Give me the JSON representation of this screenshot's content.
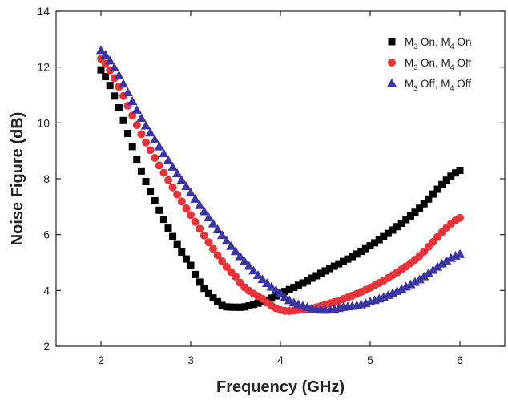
{
  "chart_data": {
    "type": "scatter",
    "title": "",
    "xlabel": "Frequency (GHz)",
    "ylabel": "Noise Figure (dB)",
    "xlim": [
      1.5,
      6.5
    ],
    "ylim": [
      2,
      14
    ],
    "xticks": [
      2,
      3,
      4,
      5,
      6
    ],
    "yticks": [
      2,
      4,
      6,
      8,
      10,
      12,
      14
    ],
    "grid": false,
    "legend_position": "top-right",
    "series": [
      {
        "name": "M3 On, M4 On",
        "legend_parts": [
          "M",
          "3",
          " On, M",
          "4",
          " On"
        ],
        "marker": "square",
        "color": "#000000",
        "x": [
          2.0,
          2.5,
          3.0,
          3.3,
          3.5,
          3.7,
          4.0,
          4.5,
          5.0,
          5.5,
          6.0
        ],
        "y": [
          11.9,
          7.9,
          4.9,
          3.6,
          3.4,
          3.5,
          3.9,
          4.7,
          5.6,
          6.8,
          8.3
        ]
      },
      {
        "name": "M3 On, M4 Off",
        "legend_parts": [
          "M",
          "3",
          " On, M",
          "4",
          " Off"
        ],
        "marker": "circle",
        "color": "#e8333a",
        "x": [
          2.0,
          2.5,
          3.0,
          3.5,
          3.8,
          4.0,
          4.2,
          4.5,
          5.0,
          5.5,
          6.0
        ],
        "y": [
          12.3,
          9.3,
          6.7,
          4.5,
          3.7,
          3.3,
          3.3,
          3.5,
          4.1,
          5.1,
          6.6
        ]
      },
      {
        "name": "M3 Off, M4 Off",
        "legend_parts": [
          "M",
          "3",
          " Off, M",
          "4",
          " Off"
        ],
        "marker": "triangle",
        "color": "#3a35a3",
        "x": [
          2.0,
          2.5,
          3.0,
          3.5,
          4.0,
          4.3,
          4.5,
          4.7,
          5.0,
          5.5,
          6.0
        ],
        "y": [
          12.6,
          9.9,
          7.5,
          5.4,
          3.9,
          3.4,
          3.3,
          3.4,
          3.6,
          4.3,
          5.3
        ]
      }
    ]
  }
}
